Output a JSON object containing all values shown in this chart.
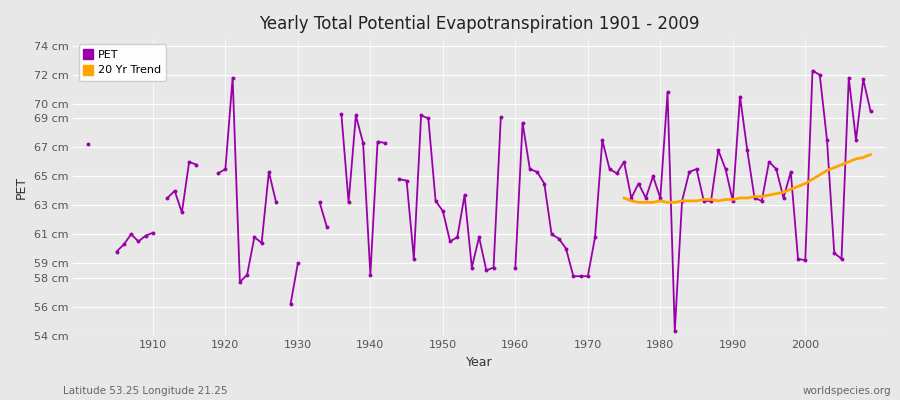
{
  "title": "Yearly Total Potential Evapotranspiration 1901 - 2009",
  "xlabel": "Year",
  "ylabel": "PET",
  "subtitle_left": "Latitude 53.25 Longitude 21.25",
  "subtitle_right": "worldspecies.org",
  "pet_color": "#9900AA",
  "trend_color": "#FFA500",
  "bg_color": "#E8E8E8",
  "fig_bg": "#E8E8E8",
  "grid_color": "#FFFFFF",
  "ylim": [
    54,
    74.5
  ],
  "ytick_values": [
    54,
    56,
    58,
    59,
    61,
    63,
    65,
    67,
    69,
    70,
    72,
    74
  ],
  "ytick_labels": [
    "54 cm",
    "56 cm",
    "58 cm",
    "59 cm",
    "61 cm",
    "63 cm",
    "65 cm",
    "67 cm",
    "69 cm",
    "70 cm",
    "72 cm",
    "74 cm"
  ],
  "xlim": [
    1899,
    2011
  ],
  "xticks": [
    1910,
    1920,
    1930,
    1940,
    1950,
    1960,
    1970,
    1980,
    1990,
    2000
  ],
  "pet_data": {
    "1901": 67.2,
    "1905": 59.8,
    "1906": 60.3,
    "1907": 61.0,
    "1908": 60.5,
    "1909": 60.9,
    "1910": 61.1,
    "1912": 63.5,
    "1913": 64.0,
    "1914": 62.5,
    "1915": 66.0,
    "1916": 65.8,
    "1919": 65.2,
    "1920": 65.5,
    "1921": 71.8,
    "1922": 57.7,
    "1923": 58.2,
    "1924": 60.8,
    "1925": 60.4,
    "1926": 65.3,
    "1927": 63.2,
    "1929": 56.2,
    "1930": 59.0,
    "1933": 63.2,
    "1934": 61.5,
    "1936": 69.3,
    "1937": 63.2,
    "1938": 69.2,
    "1939": 67.3,
    "1940": 58.2,
    "1941": 67.4,
    "1942": 67.3,
    "1944": 64.8,
    "1945": 64.7,
    "1946": 59.3,
    "1947": 69.2,
    "1948": 69.0,
    "1949": 63.3,
    "1950": 62.6,
    "1951": 60.5,
    "1952": 60.8,
    "1953": 63.7,
    "1954": 58.7,
    "1955": 60.8,
    "1956": 58.5,
    "1957": 58.7,
    "1958": 69.1,
    "1960": 58.7,
    "1961": 68.7,
    "1962": 65.5,
    "1963": 65.3,
    "1964": 64.5,
    "1965": 61.0,
    "1966": 60.7,
    "1967": 60.0,
    "1968": 58.1,
    "1969": 58.1,
    "1970": 58.1,
    "1971": 60.8,
    "1972": 67.5,
    "1973": 65.5,
    "1974": 65.2,
    "1975": 66.0,
    "1976": 63.5,
    "1977": 64.5,
    "1978": 63.5,
    "1979": 65.0,
    "1980": 63.5,
    "1981": 70.8,
    "1982": 54.3,
    "1983": 63.3,
    "1984": 65.3,
    "1985": 65.5,
    "1986": 63.3,
    "1987": 63.3,
    "1988": 66.8,
    "1989": 65.5,
    "1990": 63.3,
    "1991": 70.5,
    "1992": 66.8,
    "1993": 63.5,
    "1994": 63.3,
    "1995": 66.0,
    "1996": 65.5,
    "1997": 63.5,
    "1998": 65.3,
    "1999": 59.3,
    "2000": 59.2,
    "2001": 72.3,
    "2002": 72.0,
    "2003": 67.5,
    "2004": 59.7,
    "2005": 59.3,
    "2006": 71.8,
    "2007": 67.5,
    "2008": 71.7,
    "2009": 69.5
  },
  "trend_data": {
    "1975": 63.5,
    "1976": 63.3,
    "1977": 63.2,
    "1978": 63.2,
    "1979": 63.2,
    "1980": 63.3,
    "1981": 63.2,
    "1982": 63.2,
    "1983": 63.3,
    "1984": 63.3,
    "1985": 63.3,
    "1986": 63.4,
    "1987": 63.4,
    "1988": 63.3,
    "1989": 63.4,
    "1990": 63.4,
    "1991": 63.5,
    "1992": 63.5,
    "1993": 63.6,
    "1994": 63.6,
    "1995": 63.7,
    "1996": 63.8,
    "1997": 63.9,
    "1998": 64.1,
    "1999": 64.3,
    "2000": 64.5,
    "2001": 64.8,
    "2002": 65.1,
    "2003": 65.4,
    "2004": 65.6,
    "2005": 65.8,
    "2006": 66.0,
    "2007": 66.2,
    "2008": 66.3,
    "2009": 66.5
  }
}
